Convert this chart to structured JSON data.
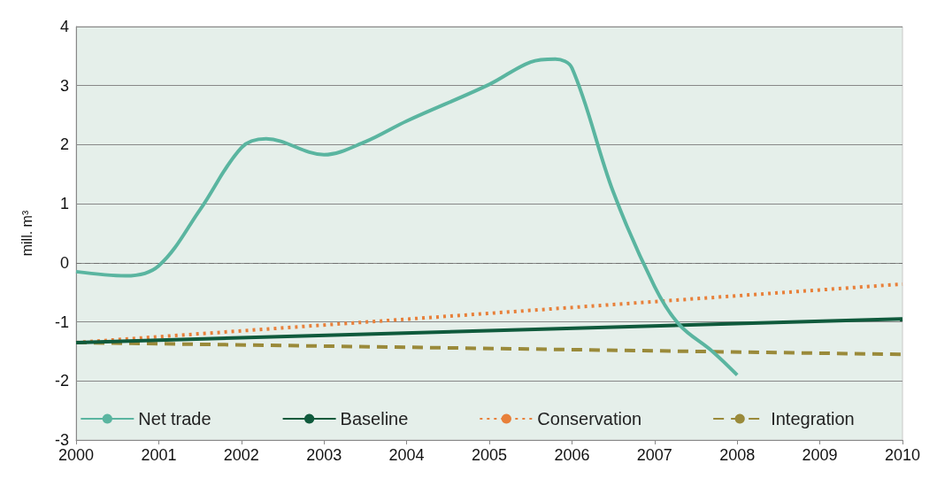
{
  "chart_data": {
    "type": "line",
    "ylabel": "mill. m³",
    "xlim": [
      2000,
      2010
    ],
    "xticks": [
      2000,
      2001,
      2002,
      2003,
      2004,
      2005,
      2006,
      2007,
      2008,
      2009,
      2010
    ],
    "ylim": [
      -3,
      4
    ],
    "yticks": [
      -3,
      -2,
      -1,
      0,
      1,
      2,
      3,
      4
    ],
    "grid": "y",
    "legend": "bottom",
    "marker": "none",
    "ref_lines": [
      {
        "axis": "y",
        "value": 0,
        "color": "#707070",
        "line_style": "dashed"
      }
    ],
    "series": [
      {
        "name": "Net trade",
        "color": "#5ab5a0",
        "line_style": "solid",
        "x": [
          2000,
          2000.6,
          2001,
          2001.5,
          2002,
          2002.3,
          2003,
          2003.5,
          2004,
          2005,
          2005.5,
          2005.8,
          2006,
          2006.5,
          2007,
          2007.3,
          2007.7,
          2008
        ],
        "values": [
          -0.15,
          -0.22,
          -0.05,
          0.9,
          1.95,
          2.1,
          1.83,
          2.05,
          2.4,
          3.02,
          3.4,
          3.45,
          3.3,
          1.2,
          -0.4,
          -1.05,
          -1.5,
          -1.9
        ]
      },
      {
        "name": "Baseline",
        "color": "#0f5a3c",
        "line_style": "solid",
        "x": [
          2000,
          2010
        ],
        "values": [
          -1.35,
          -0.95
        ]
      },
      {
        "name": "Conservation",
        "color": "#e8803a",
        "line_style": "dotted",
        "x": [
          2000,
          2010
        ],
        "values": [
          -1.35,
          -0.36
        ]
      },
      {
        "name": "Integration",
        "color": "#9a8a3a",
        "line_style": "dashed",
        "x": [
          2000,
          2010
        ],
        "values": [
          -1.35,
          -1.55
        ]
      }
    ]
  }
}
